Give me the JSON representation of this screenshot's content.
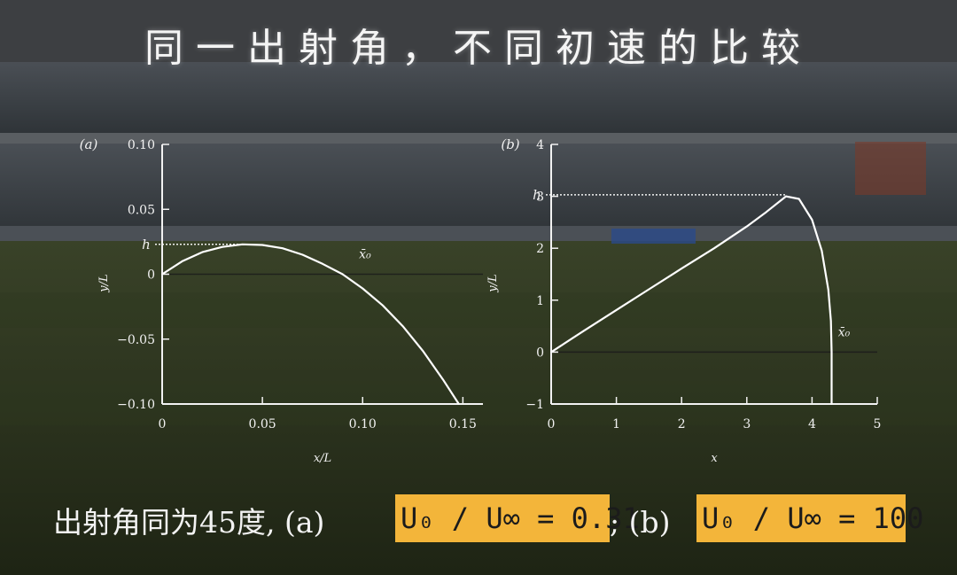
{
  "title": "同一出射角，不同初速的比较",
  "colors": {
    "curve": "#ffffff",
    "highlight": "#f3b53a"
  },
  "chart_data": [
    {
      "type": "line",
      "panel_label": "(a)",
      "xlabel": "x/L",
      "ylabel": "y/L",
      "xlim": [
        0,
        0.16
      ],
      "ylim": [
        -0.1,
        0.1
      ],
      "xticks": [
        "0",
        "0.05",
        "0.10",
        "0.15"
      ],
      "xtick_values": [
        0,
        0.05,
        0.1,
        0.15
      ],
      "yticks": [
        "0.10",
        "0.05",
        "0",
        "−0.05",
        "−0.10"
      ],
      "ytick_values": [
        0.1,
        0.05,
        0,
        -0.05,
        -0.1
      ],
      "h_label": "h",
      "h_value": 0.023,
      "x0_label": "x̄₀",
      "x0_value": 0.095,
      "series": [
        {
          "x": [
            0,
            0.01,
            0.02,
            0.03,
            0.04,
            0.05,
            0.06,
            0.07,
            0.08,
            0.09,
            0.1,
            0.11,
            0.12,
            0.13,
            0.14,
            0.148
          ],
          "y": [
            0,
            0.01,
            0.017,
            0.021,
            0.023,
            0.0225,
            0.02,
            0.015,
            0.008,
            0.0,
            -0.011,
            -0.024,
            -0.04,
            -0.059,
            -0.081,
            -0.1
          ]
        }
      ]
    },
    {
      "type": "line",
      "panel_label": "(b)",
      "xlabel": "x",
      "ylabel": "y/L",
      "xlim": [
        0,
        5
      ],
      "ylim": [
        -1,
        4
      ],
      "xticks": [
        "0",
        "1",
        "2",
        "3",
        "4",
        "5"
      ],
      "xtick_values": [
        0,
        1,
        2,
        3,
        4,
        5
      ],
      "yticks": [
        "4",
        "3",
        "2",
        "1",
        "0",
        "−1"
      ],
      "ytick_values": [
        4,
        3,
        2,
        1,
        0,
        -1
      ],
      "h_label": "h",
      "h_value": 3.03,
      "x0_label": "x̄₀",
      "x0_value": 4.3,
      "series": [
        {
          "x": [
            0,
            0.5,
            1,
            1.5,
            2,
            2.5,
            3,
            3.3,
            3.6,
            3.8,
            4.0,
            4.15,
            4.25,
            4.29,
            4.3,
            4.3
          ],
          "y": [
            0,
            0.41,
            0.81,
            1.21,
            1.61,
            2.0,
            2.42,
            2.7,
            3.0,
            2.95,
            2.55,
            1.95,
            1.2,
            0.6,
            0.0,
            -1.0
          ]
        }
      ]
    }
  ],
  "caption": {
    "text": "出射角同为45度, (a)",
    "highlight_a": "U₀ / U∞ = 0.31",
    "separator": "; (b)",
    "highlight_b": "U₀ / U∞ = 100"
  }
}
